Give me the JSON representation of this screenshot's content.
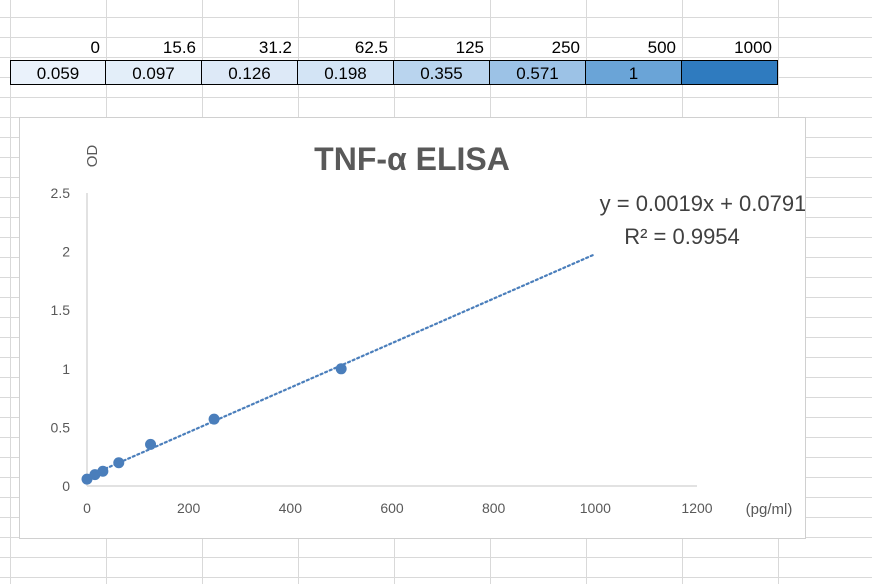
{
  "sheet": {
    "headers": [
      "0",
      "15.6",
      "31.2",
      "62.5",
      "125",
      "250",
      "500",
      "1000"
    ],
    "values": [
      "0.059",
      "0.097",
      "0.126",
      "0.198",
      "0.355",
      "0.571",
      "1",
      ""
    ],
    "fills": [
      "#eaf2fb",
      "#e3eef9",
      "#dde9f7",
      "#d3e4f5",
      "#b9d4ee",
      "#9cc2e6",
      "#6aa4d7",
      "#2f7bbf"
    ]
  },
  "chart_data": {
    "type": "scatter",
    "title": "TNF-α ELISA",
    "xlabel": "(pg/ml)",
    "ylabel": "OD",
    "xlim": [
      0,
      1200
    ],
    "ylim": [
      0,
      2.5
    ],
    "x_ticks": [
      "0",
      "200",
      "400",
      "600",
      "800",
      "1000",
      "1200"
    ],
    "y_ticks": [
      "0",
      "0.5",
      "1",
      "1.5",
      "2",
      "2.5"
    ],
    "x": [
      0,
      15.6,
      31.2,
      62.5,
      125,
      250,
      500
    ],
    "y": [
      0.059,
      0.097,
      0.126,
      0.198,
      0.355,
      0.571,
      1
    ],
    "trendline": {
      "slope": 0.0019,
      "intercept": 0.0791,
      "x_range": [
        0,
        1000
      ]
    },
    "equation_label": "y = 0.0019x + 0.0791",
    "r2_label": "R² = 0.9954",
    "marker_color": "#4a7ebb",
    "trend_color": "#4a7ebb",
    "grid": false
  }
}
